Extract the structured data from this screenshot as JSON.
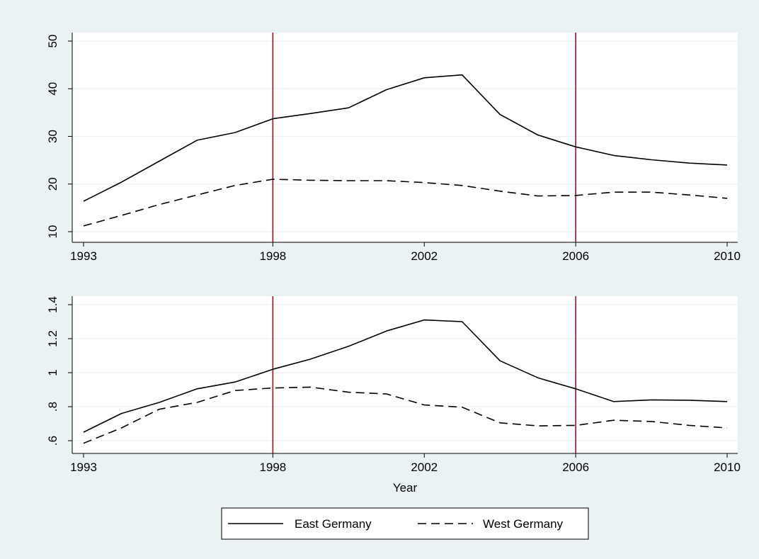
{
  "colors": {
    "background": "#eaf2f3",
    "plot_background": "#ffffff",
    "gridline": "#eaf2f3",
    "series_line": "#000000",
    "reference_line": "#a0102a"
  },
  "chart_data": [
    {
      "type": "line",
      "panel": "top",
      "xlabel": "",
      "ylabel": "",
      "xlim": [
        1993,
        2010
      ],
      "ylim": [
        10,
        50
      ],
      "xticks": [
        1993,
        1998,
        2002,
        2006,
        2010
      ],
      "yticks": [
        10,
        20,
        30,
        40,
        50
      ],
      "ytick_labels": [
        "10",
        "20",
        "30",
        "40",
        "50"
      ],
      "grid": true,
      "reference_lines_x": [
        1998,
        2006
      ],
      "x": [
        1993,
        1994,
        1995,
        1996,
        1997,
        1998,
        1999,
        2000,
        2001,
        2002,
        2003,
        2004,
        2005,
        2006,
        2007,
        2008,
        2009,
        2010
      ],
      "series": [
        {
          "name": "East Germany",
          "style": "solid",
          "values": [
            16.4,
            20.4,
            24.8,
            29.2,
            30.8,
            33.7,
            34.8,
            36.0,
            39.8,
            42.3,
            42.9,
            34.6,
            30.3,
            27.8,
            26.0,
            25.1,
            24.4,
            24.0
          ]
        },
        {
          "name": "West Germany",
          "style": "dashed",
          "values": [
            11.2,
            13.4,
            15.7,
            17.7,
            19.7,
            21.0,
            20.8,
            20.7,
            20.7,
            20.3,
            19.7,
            18.5,
            17.5,
            17.6,
            18.3,
            18.3,
            17.7,
            17.0
          ]
        }
      ]
    },
    {
      "type": "line",
      "panel": "bottom",
      "xlabel": "Year",
      "ylabel": "",
      "xlim": [
        1993,
        2010
      ],
      "ylim": [
        0.6,
        1.4
      ],
      "xticks": [
        1993,
        1998,
        2002,
        2006,
        2010
      ],
      "yticks": [
        0.6,
        0.8,
        1.0,
        1.2,
        1.4
      ],
      "ytick_labels": [
        ".6",
        ".8",
        "1",
        "1.2",
        "1.4"
      ],
      "grid": true,
      "reference_lines_x": [
        1998,
        2006
      ],
      "x": [
        1993,
        1994,
        1995,
        1996,
        1997,
        1998,
        1999,
        2000,
        2001,
        2002,
        2003,
        2004,
        2005,
        2006,
        2007,
        2008,
        2009,
        2010
      ],
      "series": [
        {
          "name": "East Germany",
          "style": "solid",
          "values": [
            0.65,
            0.76,
            0.825,
            0.905,
            0.945,
            1.02,
            1.08,
            1.155,
            1.245,
            1.31,
            1.3,
            1.07,
            0.97,
            0.905,
            0.83,
            0.84,
            0.838,
            0.83
          ]
        },
        {
          "name": "West Germany",
          "style": "dashed",
          "values": [
            0.585,
            0.675,
            0.785,
            0.825,
            0.895,
            0.91,
            0.915,
            0.885,
            0.875,
            0.81,
            0.797,
            0.705,
            0.687,
            0.69,
            0.72,
            0.713,
            0.69,
            0.675
          ]
        }
      ]
    }
  ],
  "legend": {
    "position": "bottom-center",
    "entries": [
      {
        "label": "East Germany",
        "style": "solid"
      },
      {
        "label": "West Germany",
        "style": "dashed"
      }
    ]
  }
}
